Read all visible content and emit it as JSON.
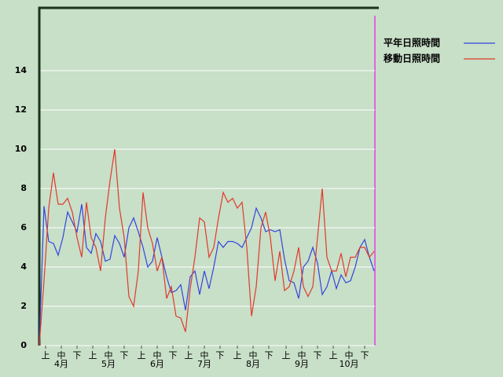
{
  "chart_data": {
    "type": "line",
    "x": [
      0,
      3,
      6,
      9,
      12,
      15,
      18,
      21,
      24,
      27,
      30,
      33,
      36,
      39,
      42,
      45,
      48,
      51,
      54,
      57,
      60,
      63,
      66,
      69,
      72,
      75,
      78,
      81,
      84,
      87,
      90,
      93,
      96,
      99,
      102,
      105,
      108,
      111,
      114,
      117,
      120,
      123,
      126,
      129,
      132,
      135,
      138,
      141,
      144,
      147,
      150,
      153,
      156,
      159,
      162,
      165,
      168,
      171,
      174,
      177,
      180,
      183,
      186,
      189,
      192,
      195,
      198,
      201,
      204,
      207,
      210,
      213
    ],
    "series": [
      {
        "name": "平年日照時間",
        "color": "#3344dd",
        "values": [
          0,
          7.1,
          5.3,
          5.2,
          4.6,
          5.5,
          6.8,
          6.3,
          5.8,
          7.2,
          5.0,
          4.7,
          5.7,
          5.3,
          4.3,
          4.4,
          5.6,
          5.2,
          4.5,
          6.0,
          6.5,
          5.8,
          5.0,
          4.0,
          4.3,
          5.5,
          4.5,
          3.5,
          2.7,
          2.8,
          3.1,
          1.8,
          3.5,
          3.8,
          2.6,
          3.8,
          2.9,
          4.0,
          5.3,
          5.0,
          5.3,
          5.3,
          5.2,
          5.0,
          5.5,
          6.0,
          7.0,
          6.5,
          5.8,
          5.9,
          5.8,
          5.9,
          4.4,
          3.3,
          3.2,
          2.4,
          4.0,
          4.3,
          5.0,
          4.2,
          2.6,
          3.0,
          3.8,
          2.9,
          3.6,
          3.2,
          3.3,
          4.0,
          5.0,
          5.4,
          4.5,
          3.8
        ]
      },
      {
        "name": "移動日照時間",
        "color": "#e03a2a",
        "values": [
          0,
          3.3,
          7.0,
          8.8,
          7.2,
          7.2,
          7.5,
          6.8,
          5.5,
          4.5,
          7.3,
          5.5,
          5.0,
          3.8,
          6.5,
          8.4,
          10.0,
          7.0,
          5.5,
          2.5,
          2.0,
          3.8,
          7.8,
          6.0,
          5.2,
          3.8,
          4.5,
          2.4,
          3.0,
          1.5,
          1.4,
          0.7,
          2.9,
          4.5,
          6.5,
          6.3,
          4.5,
          5.0,
          6.5,
          7.8,
          7.3,
          7.5,
          7.0,
          7.3,
          5.0,
          1.5,
          3.0,
          6.0,
          6.8,
          5.5,
          3.3,
          4.8,
          2.8,
          3.0,
          3.8,
          5.0,
          3.0,
          2.5,
          3.0,
          5.5,
          8.0,
          4.5,
          3.8,
          3.8,
          4.7,
          3.5,
          4.5,
          4.5,
          5.0,
          5.0,
          4.5,
          4.8
        ]
      }
    ],
    "xlim": [
      0,
      213.5
    ],
    "ylim": [
      0,
      17.2
    ],
    "yticks": [
      0,
      2,
      4,
      6,
      8,
      10,
      12,
      14
    ],
    "xticks": [
      {
        "value": 4,
        "label": "上"
      },
      {
        "value": 14,
        "label": "中"
      },
      {
        "value": 24,
        "label": "下"
      },
      {
        "value": 34,
        "label": "上"
      },
      {
        "value": 44,
        "label": "中"
      },
      {
        "value": 54,
        "label": "下"
      },
      {
        "value": 65,
        "label": "上"
      },
      {
        "value": 75,
        "label": "中"
      },
      {
        "value": 85,
        "label": "下"
      },
      {
        "value": 95,
        "label": "上"
      },
      {
        "value": 105,
        "label": "中"
      },
      {
        "value": 115,
        "label": "下"
      },
      {
        "value": 126,
        "label": "上"
      },
      {
        "value": 136,
        "label": "中"
      },
      {
        "value": 146,
        "label": "下"
      },
      {
        "value": 157,
        "label": "上"
      },
      {
        "value": 167,
        "label": "中"
      },
      {
        "value": 177,
        "label": "下"
      },
      {
        "value": 187,
        "label": "上"
      },
      {
        "value": 197,
        "label": "中"
      },
      {
        "value": 207,
        "label": "下"
      }
    ],
    "month_ticks": [
      {
        "value": 14,
        "label": "4月"
      },
      {
        "value": 44,
        "label": "5月"
      },
      {
        "value": 75,
        "label": "6月"
      },
      {
        "value": 105,
        "label": "7月"
      },
      {
        "value": 136,
        "label": "8月"
      },
      {
        "value": 167,
        "label": "9月"
      },
      {
        "value": 197,
        "label": "10月"
      }
    ],
    "grid": true
  }
}
